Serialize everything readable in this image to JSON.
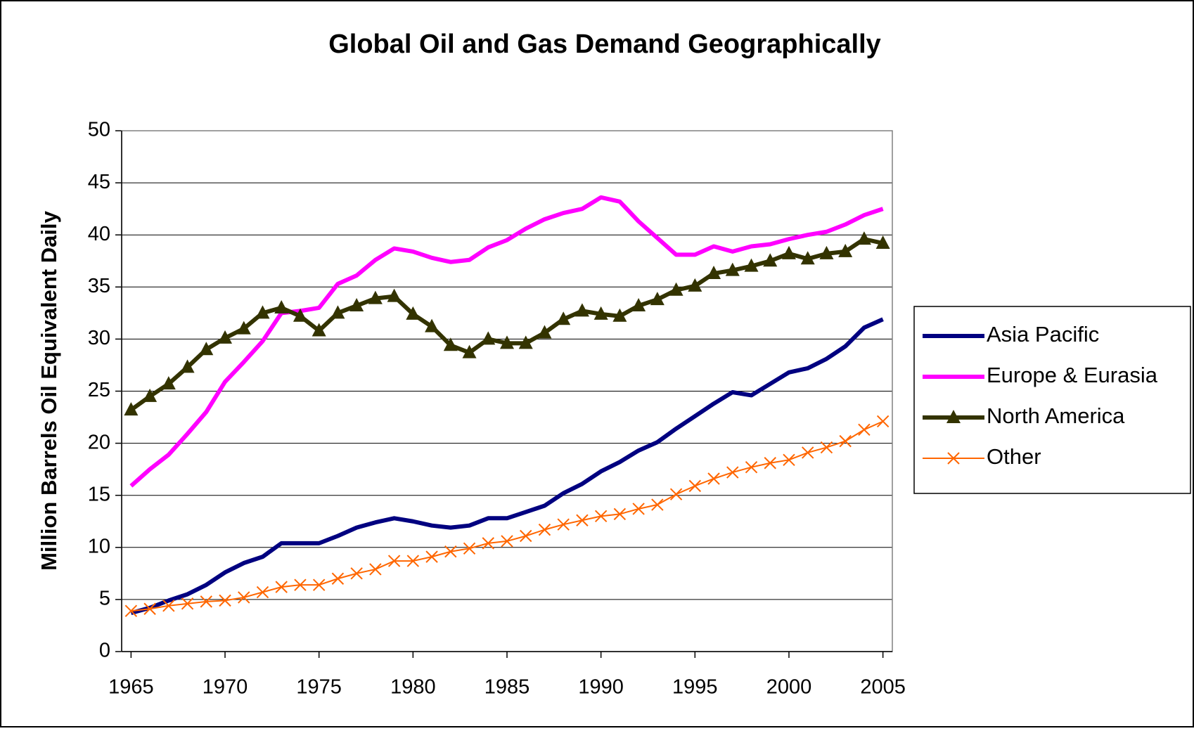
{
  "chart_data": {
    "type": "line",
    "title": "Global Oil and Gas Demand Geographically",
    "y_label": "Million Barrels Oil Equivalent Daily",
    "x": [
      1965,
      1966,
      1967,
      1968,
      1969,
      1970,
      1971,
      1972,
      1973,
      1974,
      1975,
      1976,
      1977,
      1978,
      1979,
      1980,
      1981,
      1982,
      1983,
      1984,
      1985,
      1986,
      1987,
      1988,
      1989,
      1990,
      1991,
      1992,
      1993,
      1994,
      1995,
      1996,
      1997,
      1998,
      1999,
      2000,
      2001,
      2002,
      2003,
      2004,
      2005
    ],
    "xlim": [
      1964.5,
      2005.5
    ],
    "xticks": [
      1965,
      1970,
      1975,
      1980,
      1985,
      1990,
      1995,
      2000,
      2005
    ],
    "ylim": [
      0,
      50
    ],
    "yticks": [
      0,
      5,
      10,
      15,
      20,
      25,
      30,
      35,
      40,
      45,
      50
    ],
    "grid": true,
    "legend": "right",
    "series": [
      {
        "name": "Asia Pacific",
        "color": "#000080",
        "marker": "none",
        "values": [
          3.7,
          4.2,
          4.9,
          5.5,
          6.4,
          7.6,
          8.5,
          9.1,
          10.4,
          10.4,
          10.4,
          11.1,
          11.9,
          12.4,
          12.8,
          12.5,
          12.1,
          11.9,
          12.1,
          12.8,
          12.8,
          13.4,
          14.0,
          15.2,
          16.1,
          17.3,
          18.2,
          19.3,
          20.1,
          21.4,
          22.6,
          23.8,
          24.9,
          24.6,
          25.7,
          26.8,
          27.2,
          28.1,
          29.3,
          31.1,
          31.9
        ]
      },
      {
        "name": "Europe & Eurasia",
        "color": "#ff00ff",
        "marker": "none",
        "values": [
          15.9,
          17.5,
          18.9,
          20.9,
          23.0,
          25.9,
          27.8,
          29.8,
          32.5,
          32.7,
          33.0,
          35.3,
          36.1,
          37.6,
          38.7,
          38.4,
          37.8,
          37.4,
          37.6,
          38.8,
          39.5,
          40.6,
          41.5,
          42.1,
          42.5,
          43.6,
          43.2,
          41.3,
          39.7,
          38.1,
          38.1,
          38.9,
          38.4,
          38.9,
          39.1,
          39.6,
          40.0,
          40.3,
          41.0,
          41.9,
          42.5
        ]
      },
      {
        "name": "North America",
        "color": "#333300",
        "marker": "triangle",
        "values": [
          23.2,
          24.5,
          25.7,
          27.3,
          29.0,
          30.1,
          31.0,
          32.5,
          33.0,
          32.2,
          30.8,
          32.5,
          33.2,
          33.9,
          34.1,
          32.4,
          31.2,
          29.4,
          28.7,
          30.0,
          29.6,
          29.6,
          30.6,
          31.9,
          32.7,
          32.4,
          32.2,
          33.2,
          33.8,
          34.7,
          35.1,
          36.3,
          36.6,
          37.0,
          37.5,
          38.2,
          37.7,
          38.2,
          38.4,
          39.6,
          39.2
        ]
      },
      {
        "name": "Other",
        "color": "#ff6600",
        "marker": "x",
        "values": [
          3.9,
          4.1,
          4.4,
          4.6,
          4.8,
          4.9,
          5.2,
          5.7,
          6.2,
          6.4,
          6.4,
          7.0,
          7.5,
          7.9,
          8.7,
          8.7,
          9.1,
          9.6,
          9.9,
          10.4,
          10.6,
          11.1,
          11.7,
          12.2,
          12.6,
          13.0,
          13.2,
          13.7,
          14.1,
          15.1,
          15.9,
          16.6,
          17.2,
          17.7,
          18.1,
          18.4,
          19.1,
          19.6,
          20.2,
          21.3,
          22.1
        ]
      }
    ]
  }
}
